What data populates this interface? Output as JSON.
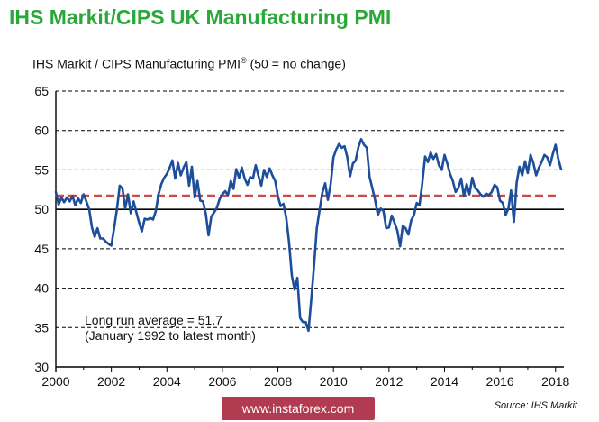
{
  "chart_data": {
    "type": "line",
    "title": "IHS Markit/CIPS UK Manufacturing PMI",
    "subtitle_main": "IHS Markit / CIPS Manufacturing PMI",
    "subtitle_mark": "®",
    "subtitle_tail": "(50 = no change)",
    "xlim": [
      2000,
      2018.3
    ],
    "ylim": [
      30,
      65
    ],
    "y_ticks": [
      30,
      35,
      40,
      45,
      50,
      55,
      60,
      65
    ],
    "x_ticks": [
      2000,
      2002,
      2004,
      2006,
      2008,
      2010,
      2012,
      2014,
      2016,
      2018
    ],
    "grid": true,
    "series": [
      {
        "color": "#1c4e9c",
        "points": [
          [
            2000.0,
            52.2
          ],
          [
            2000.1,
            50.6
          ],
          [
            2000.2,
            51.5
          ],
          [
            2000.3,
            50.9
          ],
          [
            2000.4,
            51.5
          ],
          [
            2000.5,
            51.0
          ],
          [
            2000.6,
            51.7
          ],
          [
            2000.7,
            50.5
          ],
          [
            2000.8,
            51.4
          ],
          [
            2000.9,
            50.8
          ],
          [
            2001.0,
            51.9
          ],
          [
            2001.1,
            51.0
          ],
          [
            2001.2,
            50.0
          ],
          [
            2001.3,
            47.7
          ],
          [
            2001.4,
            46.5
          ],
          [
            2001.5,
            47.6
          ],
          [
            2001.6,
            46.3
          ],
          [
            2001.7,
            46.3
          ],
          [
            2001.8,
            45.9
          ],
          [
            2001.9,
            45.6
          ],
          [
            2002.0,
            45.4
          ],
          [
            2002.1,
            47.6
          ],
          [
            2002.2,
            50.0
          ],
          [
            2002.3,
            53.0
          ],
          [
            2002.4,
            52.6
          ],
          [
            2002.5,
            50.1
          ],
          [
            2002.6,
            51.9
          ],
          [
            2002.7,
            49.5
          ],
          [
            2002.8,
            51.0
          ],
          [
            2002.9,
            49.6
          ],
          [
            2003.0,
            48.3
          ],
          [
            2003.1,
            47.2
          ],
          [
            2003.2,
            48.8
          ],
          [
            2003.3,
            48.7
          ],
          [
            2003.4,
            48.9
          ],
          [
            2003.5,
            48.7
          ],
          [
            2003.6,
            49.8
          ],
          [
            2003.7,
            51.9
          ],
          [
            2003.8,
            53.2
          ],
          [
            2003.9,
            54.0
          ],
          [
            2004.0,
            54.5
          ],
          [
            2004.1,
            55.3
          ],
          [
            2004.2,
            56.2
          ],
          [
            2004.3,
            53.9
          ],
          [
            2004.4,
            55.9
          ],
          [
            2004.5,
            54.3
          ],
          [
            2004.6,
            55.3
          ],
          [
            2004.7,
            56.0
          ],
          [
            2004.8,
            53.0
          ],
          [
            2004.9,
            55.4
          ],
          [
            2005.0,
            51.5
          ],
          [
            2005.1,
            53.6
          ],
          [
            2005.2,
            51.1
          ],
          [
            2005.3,
            51.0
          ],
          [
            2005.4,
            49.5
          ],
          [
            2005.5,
            46.7
          ],
          [
            2005.6,
            49.1
          ],
          [
            2005.7,
            49.6
          ],
          [
            2005.8,
            50.2
          ],
          [
            2005.9,
            51.3
          ],
          [
            2006.0,
            51.9
          ],
          [
            2006.1,
            52.3
          ],
          [
            2006.2,
            51.8
          ],
          [
            2006.3,
            53.6
          ],
          [
            2006.4,
            52.6
          ],
          [
            2006.5,
            55.1
          ],
          [
            2006.6,
            54.0
          ],
          [
            2006.7,
            55.3
          ],
          [
            2006.8,
            53.9
          ],
          [
            2006.9,
            53.1
          ],
          [
            2007.0,
            54.1
          ],
          [
            2007.1,
            53.9
          ],
          [
            2007.2,
            55.6
          ],
          [
            2007.3,
            54.2
          ],
          [
            2007.4,
            53.0
          ],
          [
            2007.5,
            55.0
          ],
          [
            2007.6,
            54.1
          ],
          [
            2007.7,
            55.2
          ],
          [
            2007.8,
            54.3
          ],
          [
            2007.9,
            53.6
          ],
          [
            2008.0,
            51.6
          ],
          [
            2008.1,
            50.4
          ],
          [
            2008.2,
            50.7
          ],
          [
            2008.3,
            48.9
          ],
          [
            2008.4,
            45.8
          ],
          [
            2008.5,
            41.6
          ],
          [
            2008.6,
            39.8
          ],
          [
            2008.7,
            41.3
          ],
          [
            2008.8,
            36.2
          ],
          [
            2008.9,
            35.7
          ],
          [
            2009.0,
            35.7
          ],
          [
            2009.1,
            34.6
          ],
          [
            2009.2,
            38.5
          ],
          [
            2009.3,
            42.8
          ],
          [
            2009.4,
            47.6
          ],
          [
            2009.5,
            49.9
          ],
          [
            2009.6,
            52.1
          ],
          [
            2009.7,
            53.3
          ],
          [
            2009.8,
            51.2
          ],
          [
            2009.9,
            53.2
          ],
          [
            2010.0,
            56.6
          ],
          [
            2010.1,
            57.6
          ],
          [
            2010.2,
            58.3
          ],
          [
            2010.3,
            57.8
          ],
          [
            2010.4,
            58.0
          ],
          [
            2010.5,
            56.6
          ],
          [
            2010.6,
            54.2
          ],
          [
            2010.7,
            55.8
          ],
          [
            2010.8,
            56.2
          ],
          [
            2010.9,
            57.9
          ],
          [
            2011.0,
            58.9
          ],
          [
            2011.1,
            58.2
          ],
          [
            2011.2,
            57.8
          ],
          [
            2011.3,
            54.1
          ],
          [
            2011.4,
            52.7
          ],
          [
            2011.5,
            51.2
          ],
          [
            2011.6,
            49.3
          ],
          [
            2011.7,
            50.1
          ],
          [
            2011.8,
            49.8
          ],
          [
            2011.9,
            47.6
          ],
          [
            2012.0,
            47.7
          ],
          [
            2012.1,
            49.2
          ],
          [
            2012.2,
            48.3
          ],
          [
            2012.3,
            47.3
          ],
          [
            2012.4,
            45.3
          ],
          [
            2012.5,
            47.9
          ],
          [
            2012.6,
            47.6
          ],
          [
            2012.7,
            46.8
          ],
          [
            2012.8,
            48.6
          ],
          [
            2012.9,
            49.3
          ],
          [
            2013.0,
            50.8
          ],
          [
            2013.1,
            50.5
          ],
          [
            2013.2,
            53.3
          ],
          [
            2013.3,
            56.7
          ],
          [
            2013.4,
            56.0
          ],
          [
            2013.5,
            57.2
          ],
          [
            2013.6,
            56.4
          ],
          [
            2013.7,
            57.0
          ],
          [
            2013.8,
            55.6
          ],
          [
            2013.9,
            55.0
          ],
          [
            2014.0,
            56.9
          ],
          [
            2014.1,
            55.8
          ],
          [
            2014.2,
            54.5
          ],
          [
            2014.3,
            53.6
          ],
          [
            2014.4,
            52.2
          ],
          [
            2014.5,
            52.7
          ],
          [
            2014.6,
            53.9
          ],
          [
            2014.7,
            51.7
          ],
          [
            2014.8,
            53.2
          ],
          [
            2014.9,
            51.9
          ],
          [
            2015.0,
            54.0
          ],
          [
            2015.1,
            52.7
          ],
          [
            2015.2,
            52.4
          ],
          [
            2015.3,
            51.9
          ],
          [
            2015.4,
            51.6
          ],
          [
            2015.5,
            52.0
          ],
          [
            2015.6,
            51.8
          ],
          [
            2015.7,
            52.2
          ],
          [
            2015.8,
            53.1
          ],
          [
            2015.9,
            52.8
          ],
          [
            2016.0,
            51.1
          ],
          [
            2016.1,
            50.8
          ],
          [
            2016.2,
            49.3
          ],
          [
            2016.3,
            50.1
          ],
          [
            2016.4,
            52.4
          ],
          [
            2016.5,
            48.4
          ],
          [
            2016.6,
            53.4
          ],
          [
            2016.7,
            55.4
          ],
          [
            2016.8,
            54.3
          ],
          [
            2016.9,
            56.1
          ],
          [
            2017.0,
            54.6
          ],
          [
            2017.1,
            56.9
          ],
          [
            2017.2,
            55.9
          ],
          [
            2017.3,
            54.3
          ],
          [
            2017.4,
            55.3
          ],
          [
            2017.5,
            56.0
          ],
          [
            2017.6,
            56.9
          ],
          [
            2017.7,
            56.6
          ],
          [
            2017.8,
            55.6
          ],
          [
            2017.9,
            57.0
          ],
          [
            2018.0,
            58.2
          ],
          [
            2018.1,
            56.4
          ],
          [
            2018.2,
            55.1
          ]
        ]
      }
    ],
    "average": {
      "value": 51.7,
      "color": "#c94c4c"
    },
    "annotations": [
      "Long run average = 51.7",
      "(January 1992 to latest month)"
    ]
  },
  "source": "Source: IHS Markit",
  "watermark": "www.instaforex.com"
}
